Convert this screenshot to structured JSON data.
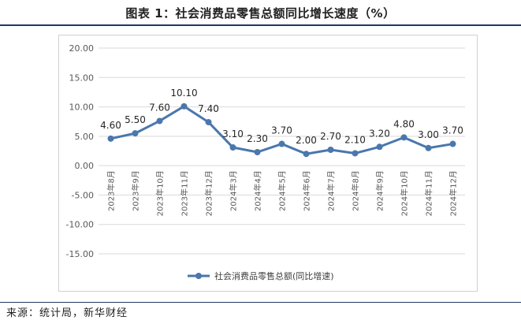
{
  "title": "图表 1：社会消费品零售总额同比增长速度（%）",
  "source": "来源：统计局，新华财经",
  "colors": {
    "line": "#4a77ad",
    "grid": "#d9d9d9",
    "axis_text": "#595959",
    "rule": "#1f3864"
  },
  "chart_data": {
    "type": "line",
    "categories": [
      "2023年8月",
      "2023年9月",
      "2023年10月",
      "2023年11月",
      "2023年12月",
      "2024年3月",
      "2024年4月",
      "2024年5月",
      "2024年6月",
      "2024年7月",
      "2024年8月",
      "2024年9月",
      "2024年10月",
      "2024年11月",
      "2024年12月"
    ],
    "series": [
      {
        "name": "社会消费品零售总额(同比增速)",
        "values": [
          4.6,
          5.5,
          7.6,
          10.1,
          7.4,
          3.1,
          2.3,
          3.7,
          2.0,
          2.7,
          2.1,
          3.2,
          4.8,
          3.0,
          3.7
        ]
      }
    ],
    "data_labels": [
      "4.60",
      "5.50",
      "7.60",
      "10.10",
      "7.40",
      "3.10",
      "2.30",
      "3.70",
      "2.00",
      "2.70",
      "2.10",
      "3.20",
      "4.80",
      "3.00",
      "3.70"
    ],
    "y_ticks": [
      "20.00",
      "15.00",
      "10.00",
      "5.00",
      "0.00",
      "-5.00",
      "-10.00",
      "-15.00"
    ],
    "ylim": [
      -15,
      20
    ],
    "grid": true,
    "legend_position": "bottom-center"
  }
}
